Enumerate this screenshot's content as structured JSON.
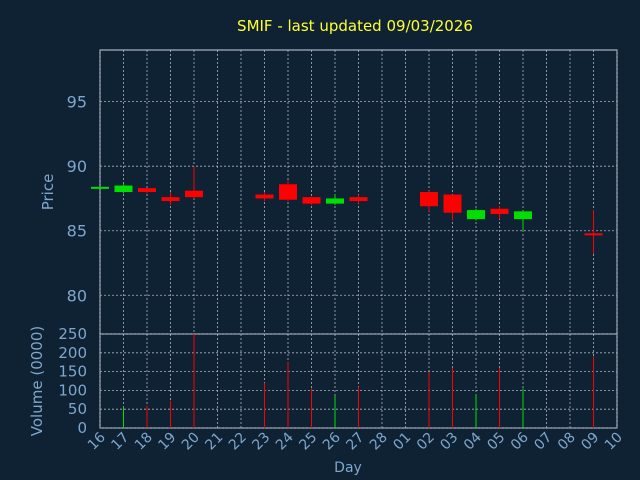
{
  "chart_data": {
    "type": "candlestick",
    "title": "SMIF - last updated 09/03/2026",
    "xlabel": "Day",
    "price_panel": {
      "ylabel": "Price",
      "ylim": [
        77,
        99
      ],
      "yticks": [
        80,
        85,
        90,
        95
      ]
    },
    "volume_panel": {
      "ylabel": "Volume (0000)",
      "ylim": [
        0,
        250
      ],
      "yticks": [
        0,
        50,
        100,
        150,
        200,
        250
      ]
    },
    "grid": true,
    "days": [
      "16",
      "17",
      "18",
      "19",
      "20",
      "21",
      "22",
      "23",
      "24",
      "25",
      "26",
      "27",
      "28",
      "01",
      "02",
      "03",
      "04",
      "05",
      "06",
      "07",
      "08",
      "09",
      "10"
    ],
    "candles": [
      {
        "day": "16",
        "open": 88.3,
        "close": 88.4,
        "high": 88.4,
        "low": 88.3,
        "volume": 0
      },
      {
        "day": "17",
        "open": 88.0,
        "close": 88.5,
        "high": 88.6,
        "low": 87.9,
        "volume": 57
      },
      {
        "day": "18",
        "open": 88.3,
        "close": 88.0,
        "high": 88.3,
        "low": 87.9,
        "volume": 60
      },
      {
        "day": "19",
        "open": 87.6,
        "close": 87.3,
        "high": 88.0,
        "low": 87.0,
        "volume": 72
      },
      {
        "day": "20",
        "open": 88.1,
        "close": 87.6,
        "high": 90.0,
        "low": 87.5,
        "volume": 250
      },
      {
        "day": "23",
        "open": 87.8,
        "close": 87.5,
        "high": 88.0,
        "low": 87.3,
        "volume": 120
      },
      {
        "day": "24",
        "open": 88.6,
        "close": 87.4,
        "high": 88.9,
        "low": 87.3,
        "volume": 175
      },
      {
        "day": "25",
        "open": 87.6,
        "close": 87.1,
        "high": 87.6,
        "low": 87.0,
        "volume": 105
      },
      {
        "day": "26",
        "open": 87.1,
        "close": 87.5,
        "high": 87.8,
        "low": 87.0,
        "volume": 85
      },
      {
        "day": "27",
        "open": 87.6,
        "close": 87.3,
        "high": 87.8,
        "low": 87.1,
        "volume": 110
      },
      {
        "day": "02",
        "open": 88.0,
        "close": 86.9,
        "high": 88.1,
        "low": 86.5,
        "volume": 150
      },
      {
        "day": "03",
        "open": 87.8,
        "close": 86.4,
        "high": 87.8,
        "low": 85.8,
        "volume": 160
      },
      {
        "day": "04",
        "open": 85.9,
        "close": 86.6,
        "high": 86.7,
        "low": 85.8,
        "volume": 90
      },
      {
        "day": "05",
        "open": 86.7,
        "close": 86.3,
        "high": 86.9,
        "low": 85.9,
        "volume": 160
      },
      {
        "day": "06",
        "open": 85.9,
        "close": 86.5,
        "high": 86.5,
        "low": 85.0,
        "volume": 105
      },
      {
        "day": "09",
        "open": 84.8,
        "close": 84.7,
        "high": 86.6,
        "low": 83.2,
        "volume": 190
      }
    ],
    "colors": {
      "background": "#0f2233",
      "plot": "#0f2233",
      "border": "#c9d3e0",
      "grid": "#aab4c0",
      "text": "#7fa6cc",
      "title": "#ffff33",
      "up": "#00e000",
      "down": "#ff0000"
    }
  }
}
